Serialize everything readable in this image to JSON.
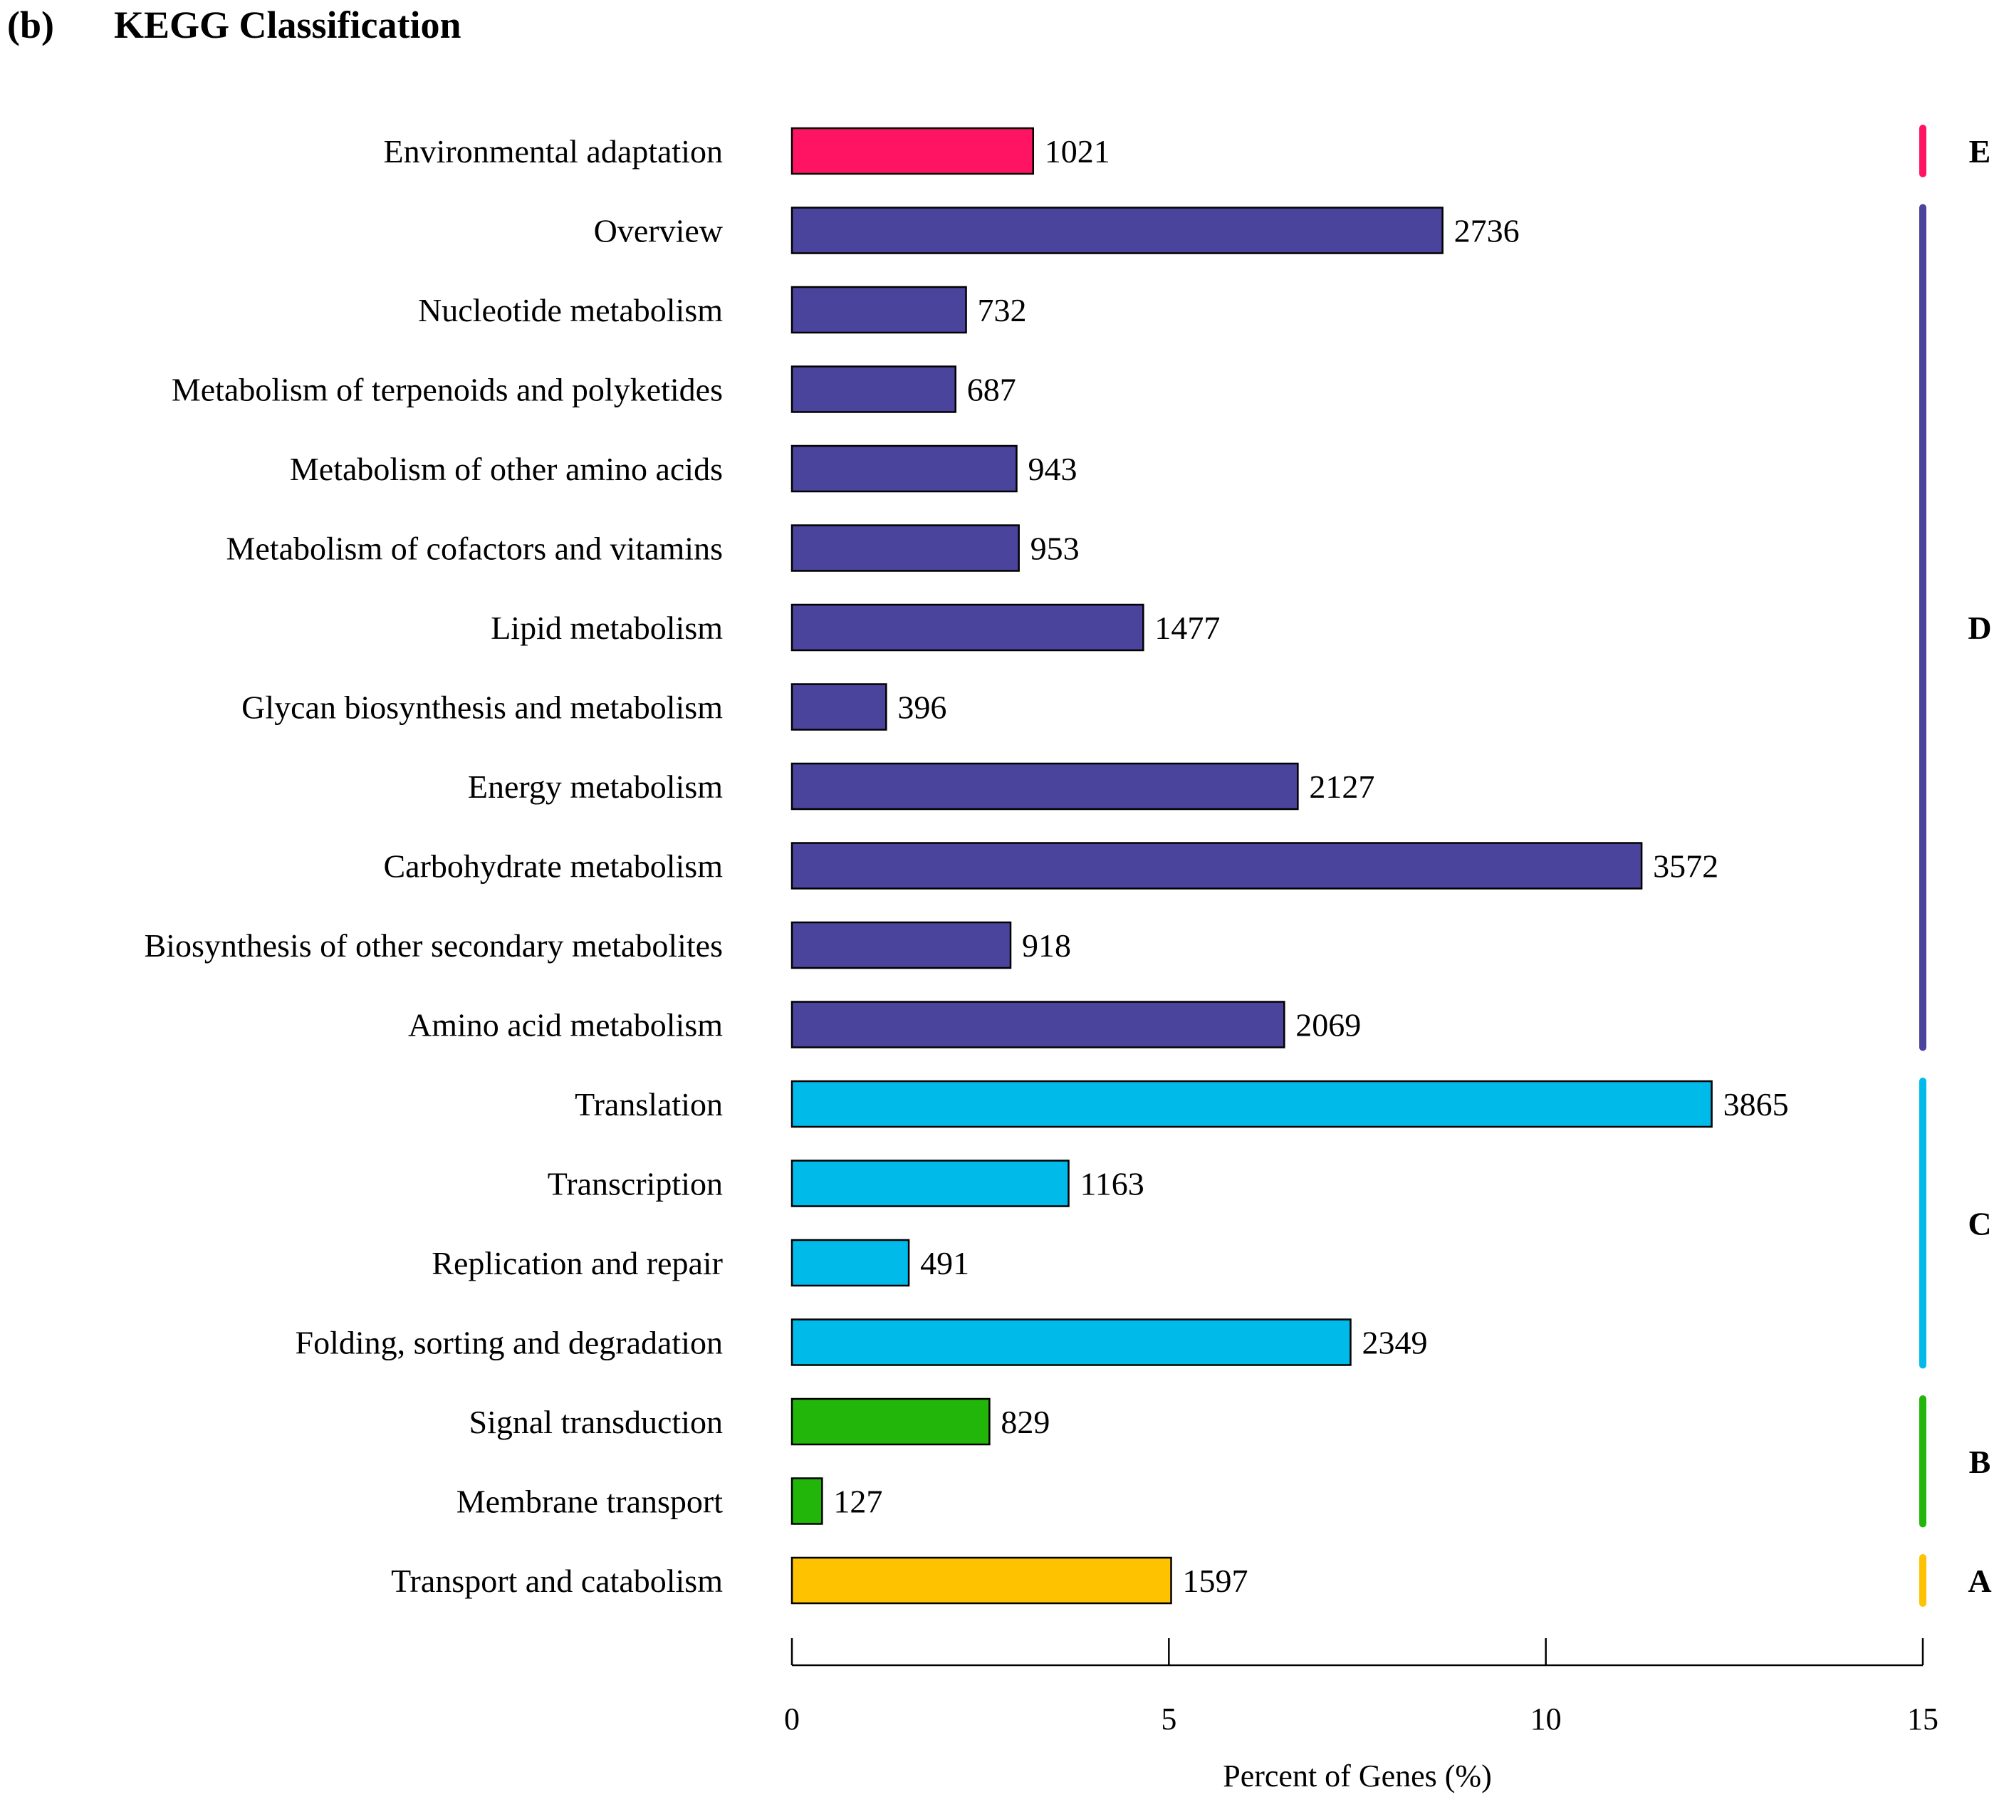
{
  "panel_label": "(b)",
  "chart_data": {
    "type": "bar",
    "orientation": "horizontal",
    "title": "KEGG Classification",
    "xlabel": "Percent of Genes (%)",
    "ylabel": "",
    "xlim": [
      0,
      15
    ],
    "xticks": [
      0,
      5,
      10,
      15
    ],
    "categories": [
      "Environmental adaptation",
      "Overview",
      "Nucleotide metabolism",
      "Metabolism of terpenoids and polyketides",
      "Metabolism of other amino acids",
      "Metabolism of cofactors and vitamins",
      "Lipid metabolism",
      "Glycan biosynthesis and metabolism",
      "Energy metabolism",
      "Carbohydrate metabolism",
      "Biosynthesis of other secondary metabolites",
      "Amino acid metabolism",
      "Translation",
      "Transcription",
      "Replication and repair",
      "Folding, sorting and degradation",
      "Signal transduction",
      "Membrane transport",
      "Transport and catabolism"
    ],
    "percent_values": [
      3.2,
      8.63,
      2.31,
      2.17,
      2.98,
      3.01,
      4.66,
      1.25,
      6.71,
      11.27,
      2.9,
      6.53,
      12.2,
      3.67,
      1.55,
      7.41,
      2.62,
      0.4,
      5.03
    ],
    "gene_counts": [
      "1021",
      "2736",
      "732",
      "687",
      "943",
      "953",
      "1477",
      "396",
      "2127",
      "3572",
      "918",
      "2069",
      "3865",
      "1163",
      "491",
      "2349",
      "829",
      "127",
      "1597"
    ],
    "group_of_category": [
      "E",
      "D",
      "D",
      "D",
      "D",
      "D",
      "D",
      "D",
      "D",
      "D",
      "D",
      "D",
      "C",
      "C",
      "C",
      "C",
      "B",
      "B",
      "A"
    ],
    "groups": [
      {
        "name": "E",
        "color": "#FF1464"
      },
      {
        "name": "D",
        "color": "#4A449C"
      },
      {
        "name": "C",
        "color": "#00BAEA"
      },
      {
        "name": "B",
        "color": "#22B60A"
      },
      {
        "name": "A",
        "color": "#FFC200"
      }
    ]
  }
}
